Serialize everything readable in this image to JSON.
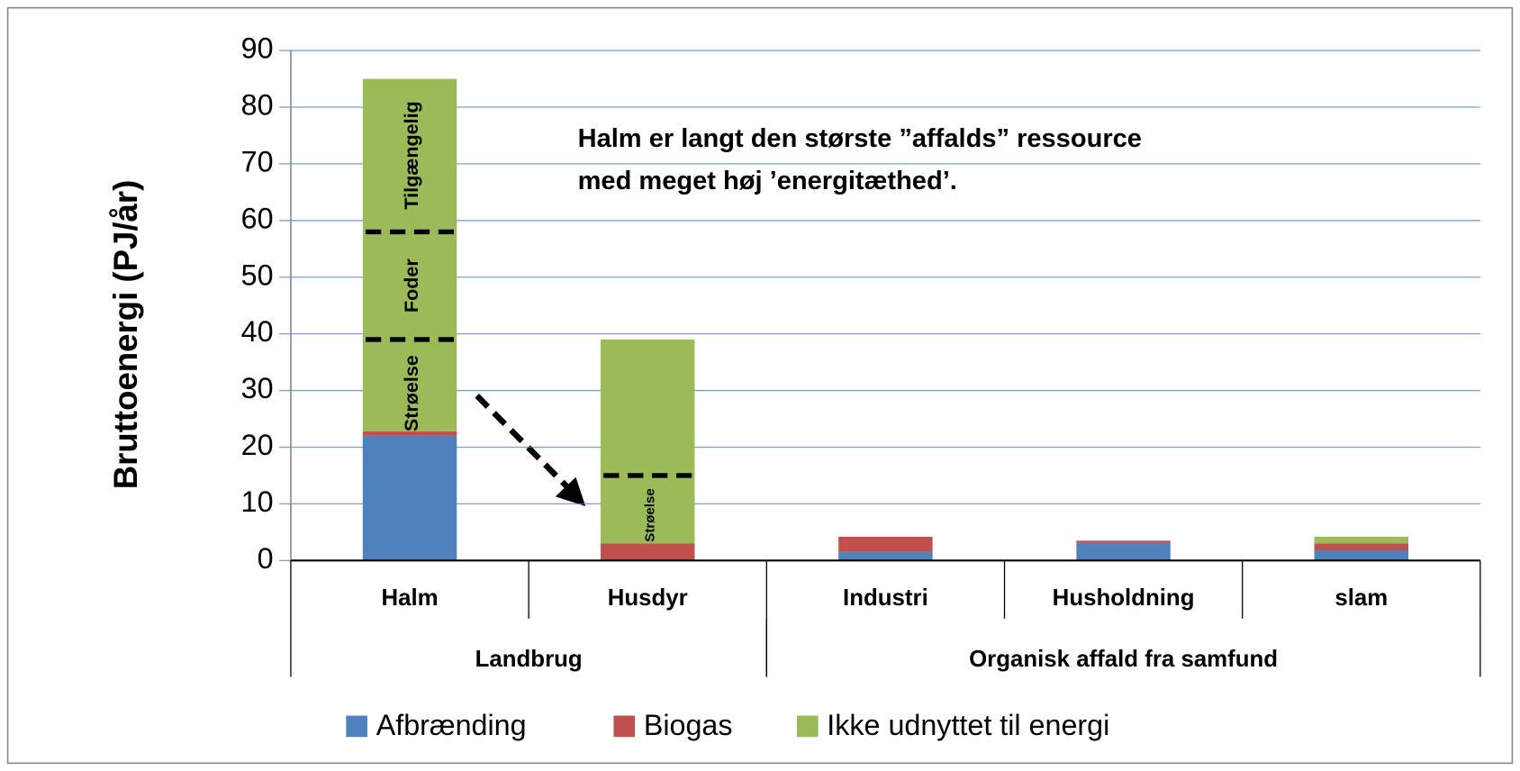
{
  "chart_data": {
    "type": "stacked_bar",
    "ylabel": "Bruttoenergi  (PJ/år)",
    "categories": [
      "Halm",
      "Husdyr",
      "Industri",
      "Husholdning",
      "slam"
    ],
    "groups": [
      {
        "name": "Landbrug",
        "size": 2
      },
      {
        "name": "Organisk affald fra samfund",
        "size": 3
      }
    ],
    "series": [
      {
        "name": "Afbrænding",
        "color": "#4f81bd",
        "values": [
          22,
          0,
          1.5,
          3.1,
          1.8
        ]
      },
      {
        "name": "Biogas",
        "color": "#c0504d",
        "values": [
          0.8,
          3,
          2.7,
          0.4,
          1.2
        ]
      },
      {
        "name": "Ikke udnyttet til energi",
        "color": "#9bbb59",
        "values": [
          62.2,
          36,
          0,
          0,
          1.2
        ]
      }
    ],
    "ylim": [
      0,
      90
    ],
    "yticks": [
      0,
      10,
      20,
      30,
      40,
      50,
      60,
      70,
      80,
      90
    ],
    "grid": true,
    "annotation": [
      "Halm er langt den største ”affalds” ressource",
      "med meget høj ’energitæthed’."
    ],
    "bar_labels": [
      "Tilgængelig",
      "Foder",
      "Strøelse",
      "Strøelse"
    ],
    "dividers": [
      58,
      39,
      15
    ]
  }
}
